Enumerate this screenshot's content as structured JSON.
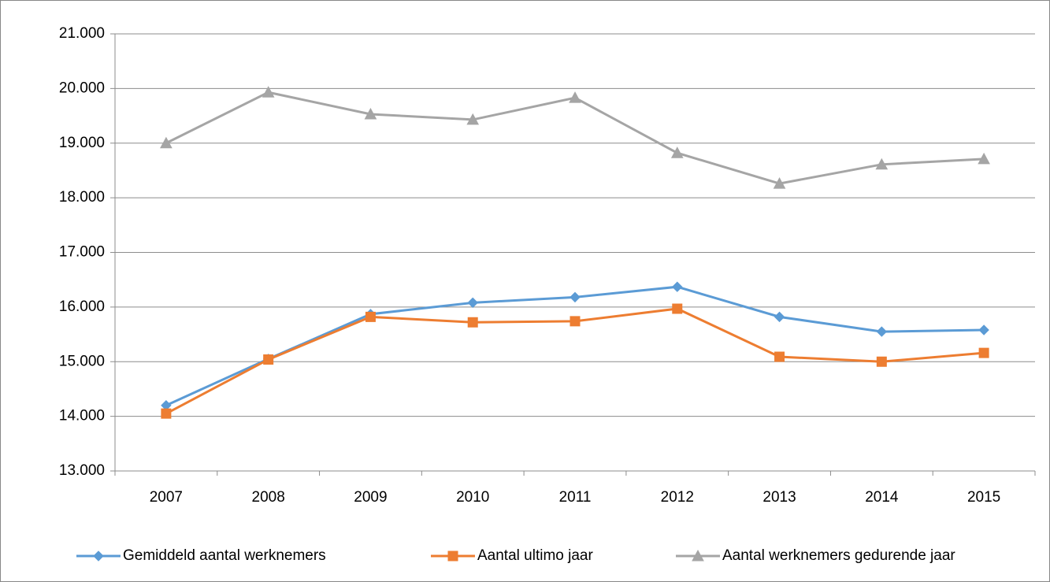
{
  "chart_data": {
    "type": "line",
    "categories": [
      "2007",
      "2008",
      "2009",
      "2010",
      "2011",
      "2012",
      "2013",
      "2014",
      "2015"
    ],
    "series": [
      {
        "name": "Gemiddeld aantal werknemers",
        "color": "#5b9bd5",
        "marker": "diamond",
        "values": [
          14200,
          15050,
          15870,
          16080,
          16180,
          16370,
          15820,
          15550,
          15580
        ]
      },
      {
        "name": "Aantal ultimo jaar",
        "color": "#ed7d31",
        "marker": "square",
        "values": [
          14050,
          15040,
          15820,
          15720,
          15740,
          15970,
          15090,
          15000,
          15160
        ]
      },
      {
        "name": "Aantal werknemers gedurende jaar",
        "color": "#a5a5a5",
        "marker": "triangle",
        "values": [
          19000,
          19930,
          19530,
          19430,
          19830,
          18820,
          18260,
          18610,
          18710
        ]
      }
    ],
    "ylim": [
      13000,
      21000
    ],
    "yticks": [
      {
        "value": 13000,
        "label": "13.000"
      },
      {
        "value": 14000,
        "label": "14.000"
      },
      {
        "value": 15000,
        "label": "15.000"
      },
      {
        "value": 16000,
        "label": "16.000"
      },
      {
        "value": 17000,
        "label": "17.000"
      },
      {
        "value": 18000,
        "label": "18.000"
      },
      {
        "value": 19000,
        "label": "19.000"
      },
      {
        "value": 20000,
        "label": "20.000"
      },
      {
        "value": 21000,
        "label": "21.000"
      }
    ],
    "grid": true,
    "legend": "bottom"
  }
}
